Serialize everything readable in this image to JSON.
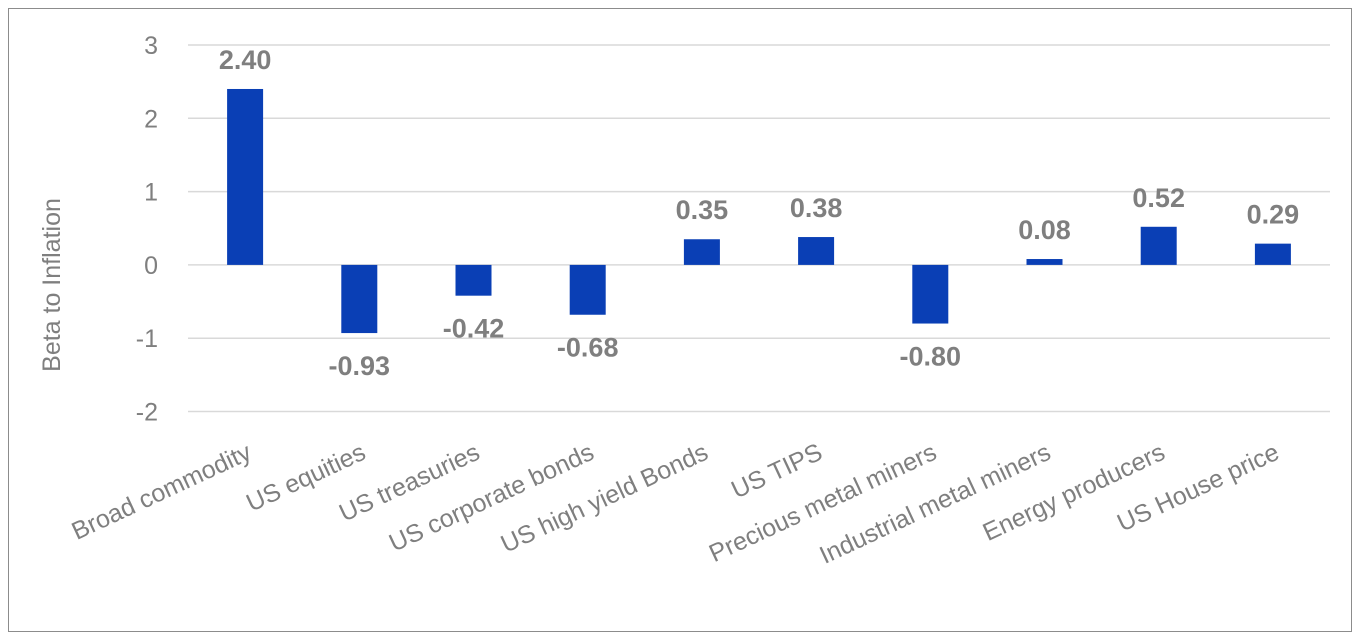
{
  "chart_data": {
    "type": "bar",
    "title": "",
    "xlabel": "",
    "ylabel": "Beta to Inflation",
    "ylim": [
      -2,
      3
    ],
    "yticks": [
      3,
      2,
      1,
      0,
      -1,
      -2
    ],
    "grid": true,
    "bar_color": "#0a3fb5",
    "categories": [
      "Broad commodity",
      "US equities",
      "US treasuries",
      "US corporate bonds",
      "US high yield Bonds",
      "US TIPS",
      "Precious metal miners",
      "Industrial metal miners",
      "Energy producers",
      "US House price"
    ],
    "values": [
      2.4,
      -0.93,
      -0.42,
      -0.68,
      0.35,
      0.38,
      -0.8,
      0.08,
      0.52,
      0.29
    ],
    "data_labels": [
      "2.40",
      "-0.93",
      "-0.42",
      "-0.68",
      "0.35",
      "0.38",
      "-0.80",
      "0.08",
      "0.52",
      "0.29"
    ]
  }
}
